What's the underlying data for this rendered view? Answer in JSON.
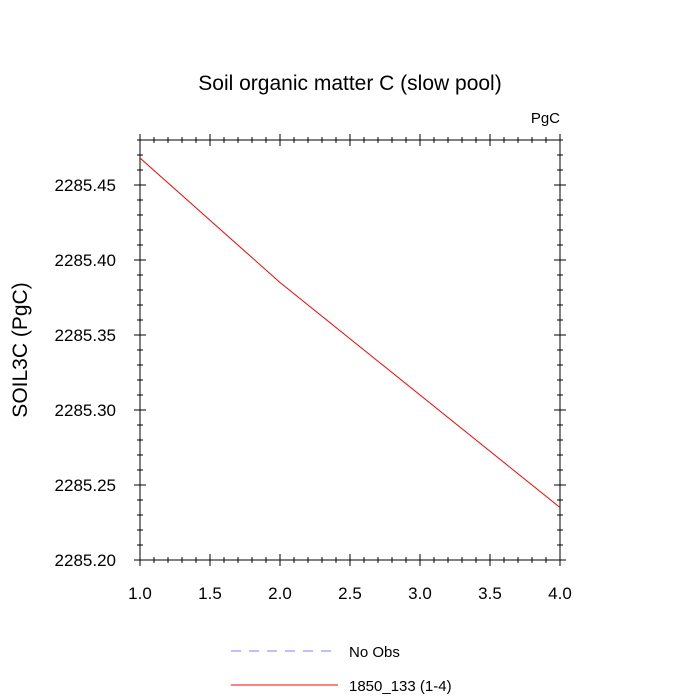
{
  "chart_data": {
    "type": "line",
    "title": "Soil organic matter C (slow pool)",
    "units_label": "PgC",
    "ylabel": "SOIL3C  (PgC)",
    "xlabel": "",
    "xlim": [
      1.0,
      4.0
    ],
    "ylim": [
      2285.2,
      2285.48
    ],
    "x_ticks": [
      "1.0",
      "1.5",
      "2.0",
      "2.5",
      "3.0",
      "3.5",
      "4.0"
    ],
    "y_ticks": [
      "2285.20",
      "2285.25",
      "2285.30",
      "2285.35",
      "2285.40",
      "2285.45"
    ],
    "series": [
      {
        "name": "1850_133 (1-4)",
        "color": "#ff0000",
        "dash": "solid",
        "x": [
          1.0,
          2.0,
          3.0,
          4.0
        ],
        "y": [
          2285.468,
          2285.385,
          2285.31,
          2285.235
        ]
      }
    ],
    "legend": [
      {
        "name": "No Obs",
        "color": "#8080ff",
        "dash": "dashed"
      },
      {
        "name": "1850_133 (1-4)",
        "color": "#ff0000",
        "dash": "solid"
      }
    ],
    "legend_position": "bottom-center",
    "grid": false
  }
}
